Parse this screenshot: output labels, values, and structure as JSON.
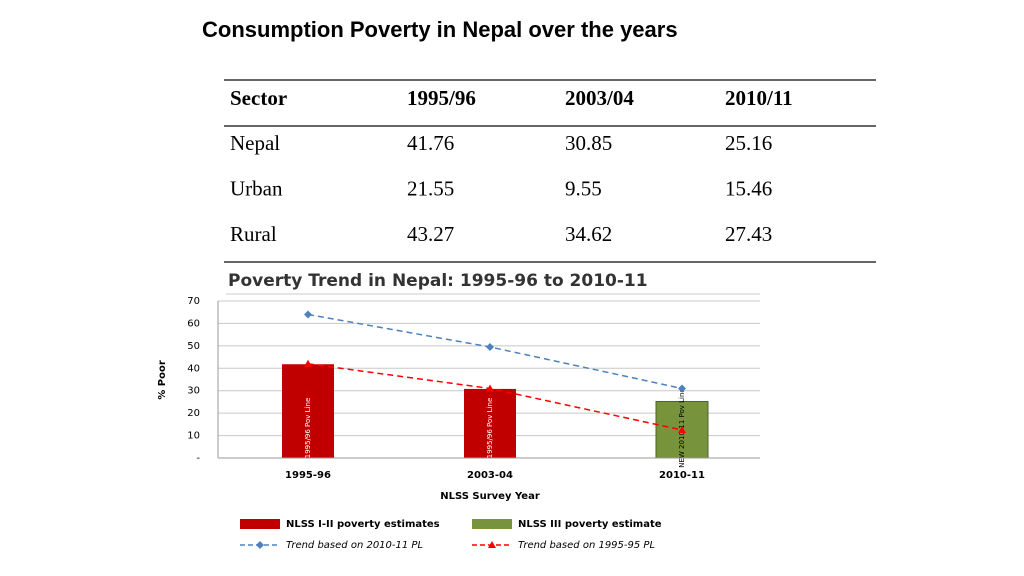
{
  "title": "Consumption Poverty in Nepal over the years",
  "table": {
    "header": [
      "Sector",
      "1995/96",
      "2003/04",
      "2010/11"
    ],
    "rows": [
      [
        "Nepal",
        41.76,
        30.85,
        25.16
      ],
      [
        "Urban",
        21.55,
        9.55,
        15.46
      ],
      [
        "Rural",
        43.27,
        34.62,
        27.43
      ]
    ]
  },
  "chart_data": {
    "type": "bar",
    "title": "Poverty Trend in Nepal: 1995-96 to 2010-11",
    "x_label": "NLSS Survey Year",
    "y_label": "% Poor",
    "categories": [
      "1995-96",
      "2003-04",
      "2010-11"
    ],
    "ylim": [
      0,
      70
    ],
    "yticks": [
      {
        "value": 0,
        "label": "-"
      },
      10,
      20,
      30,
      40,
      50,
      60,
      70
    ],
    "grid": true,
    "bar_labels": [
      "1995/96 Pov Line",
      "1995/96 Pov Line",
      "NEW 2010-11 Pov Line"
    ],
    "series": [
      {
        "name": "NLSS I-II poverty estimates",
        "type": "bar",
        "color": "#c00000",
        "values": [
          41.8,
          30.8,
          null
        ]
      },
      {
        "name": "NLSS III poverty estimate",
        "type": "bar",
        "color": "#77933c",
        "values": [
          null,
          null,
          25.2
        ]
      },
      {
        "name": "Trend based on 2010-11 PL",
        "type": "line",
        "marker": "diamond",
        "color": "#4f81bd",
        "values": [
          64,
          49.5,
          31
        ]
      },
      {
        "name": "Trend based on 1995-95 PL",
        "type": "line",
        "marker": "triangle",
        "color": "#ff0000",
        "values": [
          42,
          31,
          12.5
        ]
      }
    ]
  }
}
